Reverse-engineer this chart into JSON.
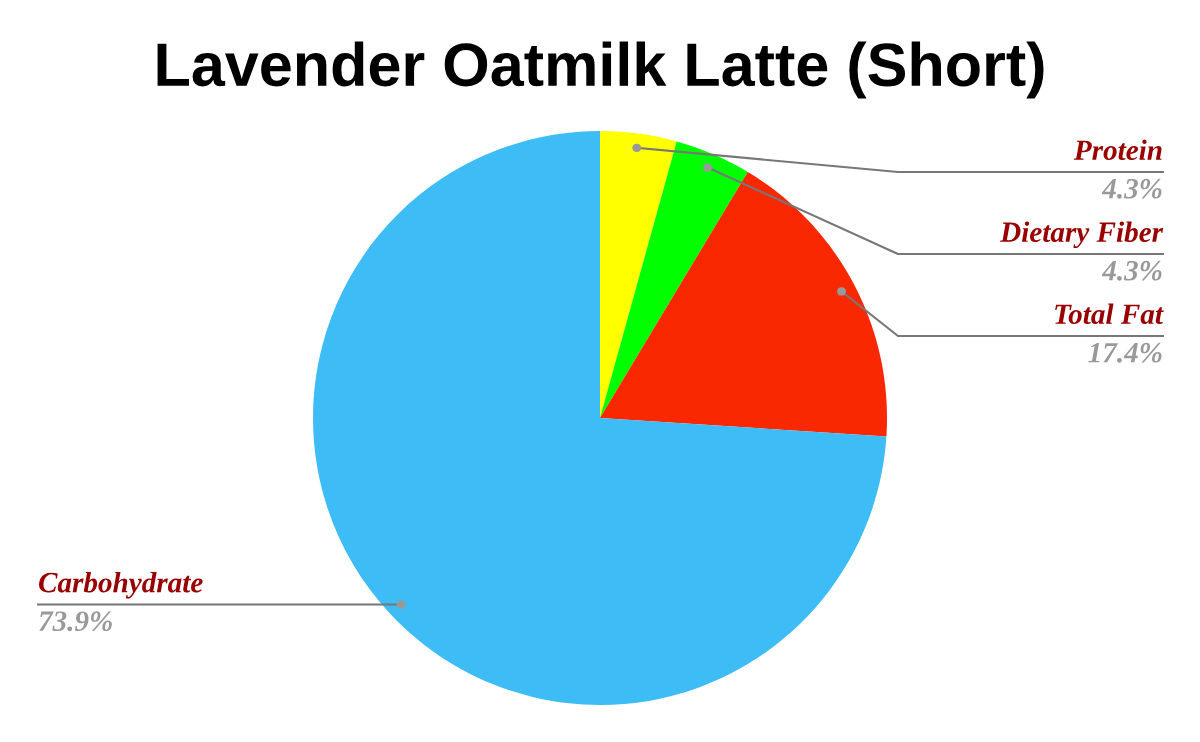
{
  "chart_data": {
    "type": "pie",
    "title": "Lavender Oatmilk Latte (Short)",
    "categories": [
      "Protein",
      "Dietary Fiber",
      "Total Fat",
      "Carbohydrate"
    ],
    "values": [
      4.3,
      4.3,
      17.4,
      73.9
    ],
    "colors": [
      "#ffff00",
      "#00ff00",
      "#f92800",
      "#3dbcf6"
    ],
    "value_labels": [
      "4.3%",
      "4.3%",
      "17.4%",
      "73.9%"
    ],
    "legend": false
  }
}
